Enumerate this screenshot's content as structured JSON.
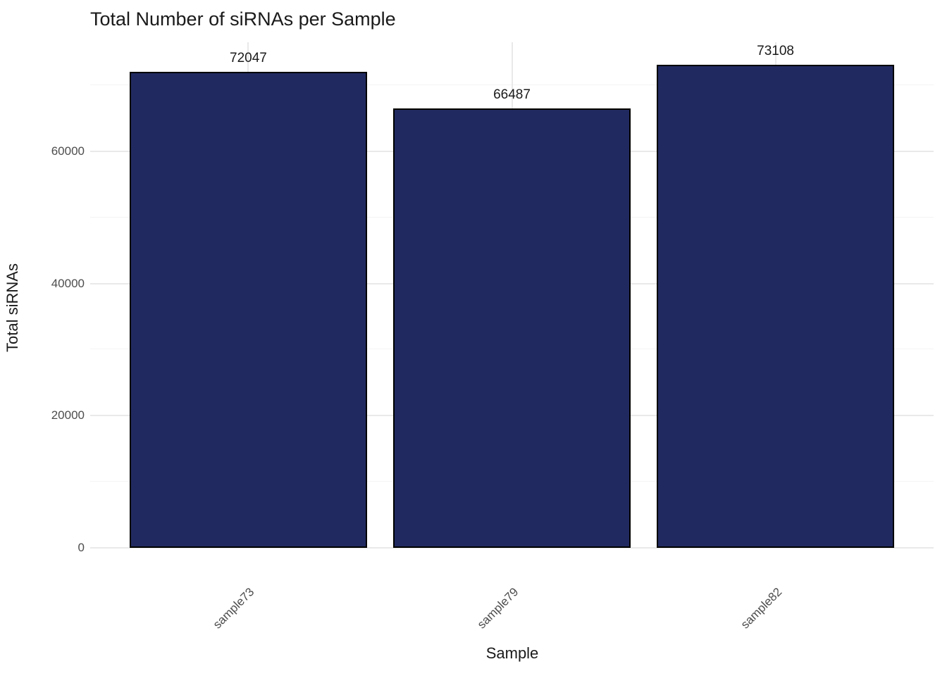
{
  "chart_data": {
    "type": "bar",
    "title": "Total Number of siRNAs per Sample",
    "xlabel": "Sample",
    "ylabel": "Total siRNAs",
    "categories": [
      "sample73",
      "sample79",
      "sample82"
    ],
    "values": [
      72047,
      66487,
      73108
    ],
    "bar_labels": [
      "72047",
      "66487",
      "73108"
    ],
    "ylim": [
      0,
      76500
    ],
    "yticks": [
      0,
      20000,
      40000,
      60000
    ],
    "ytick_labels": [
      "0",
      "20000",
      "40000",
      "60000"
    ],
    "yticks_minor": [
      10000,
      30000,
      50000,
      70000
    ],
    "bar_fill_color": "#212a60",
    "bar_border_color": "#000000",
    "grid_major_color": "#e9e9e9",
    "grid_minor_color": "#f4f4f4",
    "tick_label_color": "#4d4d4d",
    "text_color": "#1a1a1a",
    "background_color": "#ffffff",
    "legend_position": "none",
    "grid": "on",
    "bar_width_fraction": 0.9
  }
}
